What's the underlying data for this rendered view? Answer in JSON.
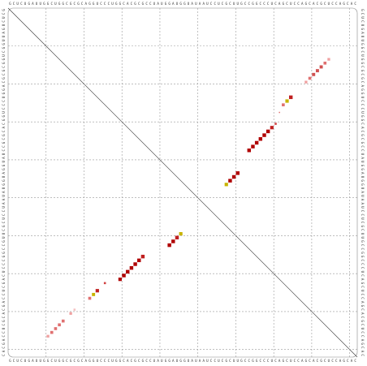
{
  "chart_data": {
    "type": "dotplot",
    "sequence": "GCUCUGAUUGGCUGGCGCGCAGGUCCCUGGCACGCGCCUAUGGAUGGUAUAAUCCUCGCUUGCCGGCCCUCAGCUCCAGCACGCUCCAGCAC",
    "ticks": [
      10,
      20,
      30,
      40,
      50,
      60,
      70,
      80,
      90
    ],
    "grid": true,
    "upper": [
      {
        "i": 47,
        "j": 58,
        "p": 0.8,
        "color": "#c8b400"
      },
      {
        "i": 46,
        "j": 59,
        "p": 0.9,
        "color": "#b00000"
      },
      {
        "i": 45,
        "j": 60,
        "p": 0.9,
        "color": "#b00000"
      },
      {
        "i": 44,
        "j": 61,
        "p": 0.9,
        "color": "#b00000"
      },
      {
        "i": 38,
        "j": 64,
        "p": 0.9,
        "color": "#b00000"
      },
      {
        "i": 37,
        "j": 65,
        "p": 0.9,
        "color": "#b00000"
      },
      {
        "i": 36,
        "j": 66,
        "p": 0.9,
        "color": "#b00000"
      },
      {
        "i": 35,
        "j": 67,
        "p": 0.9,
        "color": "#b00000"
      },
      {
        "i": 34,
        "j": 68,
        "p": 0.9,
        "color": "#b00000"
      },
      {
        "i": 33,
        "j": 69,
        "p": 0.9,
        "color": "#b00000"
      },
      {
        "i": 32,
        "j": 70,
        "p": 0.8,
        "color": "#c02020"
      },
      {
        "i": 31,
        "j": 71,
        "p": 0.3,
        "color": "#d04040"
      },
      {
        "i": 28,
        "j": 72,
        "p": 0.1,
        "color": "#e07070"
      },
      {
        "i": 26,
        "j": 73,
        "p": 0.6,
        "color": "#e07070"
      },
      {
        "i": 25,
        "j": 74,
        "p": 0.8,
        "color": "#c8b400"
      },
      {
        "i": 24,
        "j": 75,
        "p": 0.9,
        "color": "#c02020"
      },
      {
        "i": 20,
        "j": 79,
        "p": 0.5,
        "color": "#f0a0a0"
      },
      {
        "i": 19,
        "j": 80,
        "p": 0.6,
        "color": "#e07070"
      },
      {
        "i": 18,
        "j": 81,
        "p": 0.7,
        "color": "#d05050"
      },
      {
        "i": 17,
        "j": 82,
        "p": 0.7,
        "color": "#d05050"
      },
      {
        "i": 16,
        "j": 83,
        "p": 0.7,
        "color": "#d05050"
      },
      {
        "i": 15,
        "j": 84,
        "p": 0.6,
        "color": "#e07070"
      },
      {
        "i": 14,
        "j": 85,
        "p": 0.5,
        "color": "#f0a0a0"
      }
    ],
    "lower": [
      {
        "i": 11,
        "j": 87,
        "p": 0.5,
        "color": "#f0a0a0"
      },
      {
        "i": 12,
        "j": 86,
        "p": 0.6,
        "color": "#e07070"
      },
      {
        "i": 13,
        "j": 85,
        "p": 0.6,
        "color": "#e07070"
      },
      {
        "i": 14,
        "j": 84,
        "p": 0.6,
        "color": "#e07070"
      },
      {
        "i": 15,
        "j": 83,
        "p": 0.6,
        "color": "#e07070"
      },
      {
        "i": 17,
        "j": 81,
        "p": 0.5,
        "color": "#f0a0a0"
      },
      {
        "i": 18,
        "j": 80,
        "p": 0.3,
        "color": "#f4c0c0"
      },
      {
        "i": 22,
        "j": 77,
        "p": 0.6,
        "color": "#e07070"
      },
      {
        "i": 23,
        "j": 76,
        "p": 0.7,
        "color": "#c8b400"
      },
      {
        "i": 24,
        "j": 75,
        "p": 0.8,
        "color": "#c02020"
      },
      {
        "i": 26,
        "j": 73,
        "p": 0.3,
        "color": "#d04040"
      },
      {
        "i": 30,
        "j": 72,
        "p": 0.8,
        "color": "#b00000"
      },
      {
        "i": 31,
        "j": 71,
        "p": 0.9,
        "color": "#b00000"
      },
      {
        "i": 32,
        "j": 70,
        "p": 0.9,
        "color": "#b00000"
      },
      {
        "i": 33,
        "j": 69,
        "p": 0.9,
        "color": "#b00000"
      },
      {
        "i": 34,
        "j": 68,
        "p": 0.9,
        "color": "#b00000"
      },
      {
        "i": 35,
        "j": 67,
        "p": 0.9,
        "color": "#b00000"
      },
      {
        "i": 36,
        "j": 66,
        "p": 0.9,
        "color": "#c02020"
      },
      {
        "i": 43,
        "j": 63,
        "p": 0.9,
        "color": "#b00000"
      },
      {
        "i": 44,
        "j": 62,
        "p": 0.9,
        "color": "#b00000"
      },
      {
        "i": 45,
        "j": 61,
        "p": 0.9,
        "color": "#c02020"
      },
      {
        "i": 46,
        "j": 60,
        "p": 0.8,
        "color": "#c8b400"
      }
    ]
  }
}
